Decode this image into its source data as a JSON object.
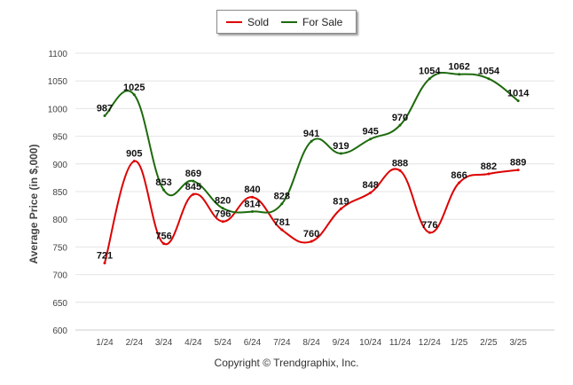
{
  "legend": {
    "sold": "Sold",
    "for_sale": "For Sale"
  },
  "footer": "Copyright © Trendgraphix, Inc.",
  "chart_data": {
    "type": "line",
    "ylabel": "Average Price (in $,000)",
    "xlabel": "",
    "categories": [
      "1/24",
      "2/24",
      "3/24",
      "4/24",
      "5/24",
      "6/24",
      "7/24",
      "8/24",
      "9/24",
      "10/24",
      "11/24",
      "12/24",
      "1/25",
      "2/25",
      "3/25"
    ],
    "ylim": [
      600,
      1100
    ],
    "yticks": [
      600,
      650,
      700,
      750,
      800,
      850,
      900,
      950,
      1000,
      1050,
      1100
    ],
    "grid": true,
    "legend_position": "top-center",
    "series": [
      {
        "name": "Sold",
        "color": "#dd0000",
        "values": [
          721,
          905,
          756,
          845,
          796,
          840,
          781,
          760,
          819,
          848,
          888,
          776,
          866,
          882,
          889
        ]
      },
      {
        "name": "For Sale",
        "color": "#1d6a0c",
        "values": [
          987,
          1025,
          853,
          869,
          820,
          814,
          828,
          941,
          919,
          945,
          970,
          1054,
          1062,
          1054,
          1014
        ]
      }
    ]
  }
}
